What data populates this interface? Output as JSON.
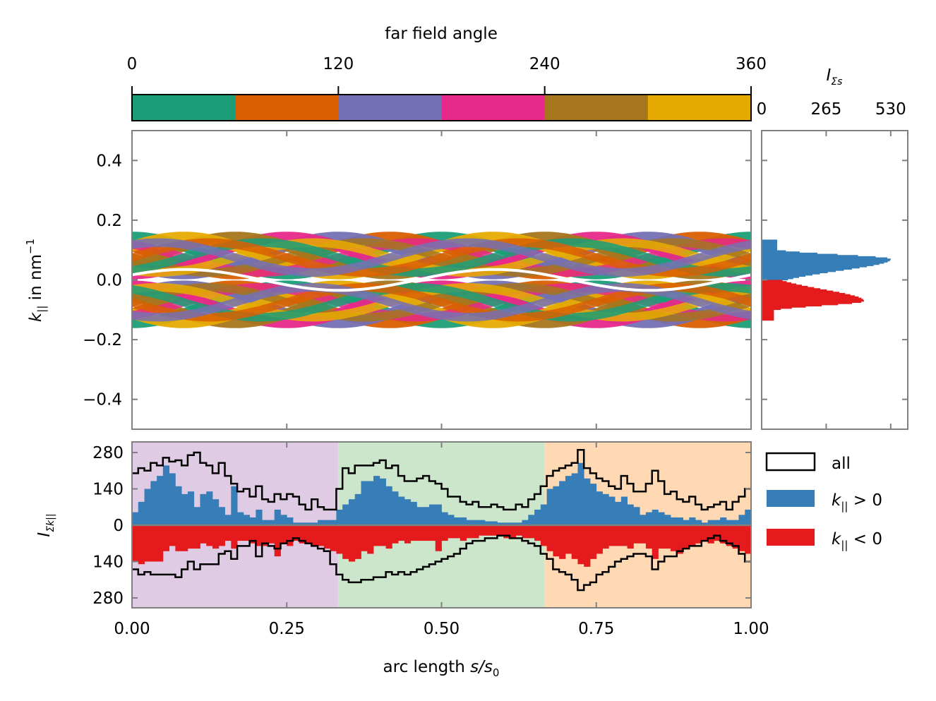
{
  "chart_data": [
    {
      "id": "colorbar",
      "type": "colorbar",
      "title": "far field angle",
      "range": [
        0,
        360
      ],
      "ticks": [
        "0",
        "120",
        "240",
        "360"
      ],
      "tick_values": [
        0,
        120,
        240,
        360
      ],
      "segments": [
        {
          "from": 0,
          "to": 60,
          "color": "#1b9e77"
        },
        {
          "from": 60,
          "to": 120,
          "color": "#d95f02"
        },
        {
          "from": 120,
          "to": 180,
          "color": "#7570b3"
        },
        {
          "from": 180,
          "to": 240,
          "color": "#e7298a"
        },
        {
          "from": 240,
          "to": 300,
          "color": "#a6761d"
        },
        {
          "from": 300,
          "to": 360,
          "color": "#e6ab02"
        }
      ]
    },
    {
      "id": "main",
      "type": "scatter",
      "ylabel_main": "k",
      "ylabel_sub": "||",
      "ylabel_rest": " in nm",
      "ylabel_sup": "−1",
      "xlim": [
        0,
        1
      ],
      "ylim": [
        -0.5,
        0.5
      ],
      "yticks": [
        "0.4",
        "0.2",
        "0.0",
        "−0.2",
        "−0.4"
      ],
      "ytick_values": [
        0.4,
        0.2,
        0.0,
        -0.2,
        -0.4
      ],
      "xtick_values": [
        0.25,
        0.5,
        0.75
      ],
      "band_amplitude": 0.13,
      "band_width": 0.018
    },
    {
      "id": "side",
      "type": "bar",
      "orientation": "horizontal",
      "xlabel_main": "I",
      "xlabel_sub": "Σs",
      "xlim": [
        0,
        600
      ],
      "xticks": [
        "0",
        "265",
        "530"
      ],
      "xtick_values": [
        0,
        265,
        530
      ],
      "ylim": [
        -0.5,
        0.5
      ],
      "series": [
        {
          "name": "k|| > 0",
          "color": "#377eb8",
          "peak_k": 0.07,
          "peak_value": 530,
          "k_range": [
            0,
            0.135
          ]
        },
        {
          "name": "k|| < 0",
          "color": "#e41a1c",
          "peak_k": -0.07,
          "peak_value": 420,
          "k_range": [
            -0.135,
            0
          ]
        }
      ]
    },
    {
      "id": "bottom",
      "type": "bar",
      "xlabel_text": "arc length ",
      "xlabel_var": "s/s",
      "xlabel_sub": "0",
      "ylabel_main": "I",
      "ylabel_sub": "Σk||",
      "xlim": [
        0,
        1
      ],
      "ylim": [
        -300,
        300
      ],
      "xticks": [
        "0.00",
        "0.25",
        "0.50",
        "0.75",
        "1.00"
      ],
      "xtick_values": [
        0,
        0.25,
        0.5,
        0.75,
        1.0
      ],
      "yticks": [
        "280",
        "140",
        "0",
        "140",
        "280"
      ],
      "ytick_values": [
        280,
        140,
        0,
        -140,
        -280
      ],
      "background_regions": [
        {
          "from": 0.0,
          "to": 0.3333,
          "color": "#e0cbe4"
        },
        {
          "from": 0.3333,
          "to": 0.6667,
          "color": "#cce6cb"
        },
        {
          "from": 0.6667,
          "to": 1.0,
          "color": "#fed9b3"
        }
      ],
      "x_bins": [
        0.005,
        0.015,
        0.025,
        0.035,
        0.045,
        0.055,
        0.065,
        0.075,
        0.085,
        0.095,
        0.105,
        0.115,
        0.125,
        0.135,
        0.145,
        0.155,
        0.165,
        0.175,
        0.185,
        0.195,
        0.205,
        0.215,
        0.225,
        0.235,
        0.245,
        0.255,
        0.265,
        0.275,
        0.285,
        0.295,
        0.305,
        0.315,
        0.325,
        0.335,
        0.345,
        0.355,
        0.365,
        0.375,
        0.385,
        0.395,
        0.405,
        0.415,
        0.425,
        0.435,
        0.445,
        0.455,
        0.465,
        0.475,
        0.485,
        0.495,
        0.505,
        0.515,
        0.525,
        0.535,
        0.545,
        0.555,
        0.565,
        0.575,
        0.585,
        0.595,
        0.605,
        0.615,
        0.625,
        0.635,
        0.645,
        0.655,
        0.665,
        0.675,
        0.685,
        0.695,
        0.705,
        0.715,
        0.725,
        0.735,
        0.745,
        0.755,
        0.765,
        0.775,
        0.785,
        0.795,
        0.805,
        0.815,
        0.825,
        0.835,
        0.845,
        0.855,
        0.865,
        0.875,
        0.885,
        0.895,
        0.905,
        0.915,
        0.925,
        0.935,
        0.945,
        0.955,
        0.965,
        0.975,
        0.985,
        0.995
      ],
      "series": [
        {
          "name": "all",
          "style": "step",
          "color": "#000000",
          "sign": 1,
          "values": [
            200,
            220,
            210,
            240,
            230,
            260,
            245,
            250,
            230,
            270,
            280,
            240,
            230,
            200,
            240,
            190,
            160,
            130,
            140,
            110,
            150,
            100,
            90,
            120,
            100,
            120,
            110,
            80,
            60,
            100,
            70,
            60,
            60,
            140,
            220,
            200,
            230,
            230,
            230,
            240,
            250,
            220,
            230,
            190,
            170,
            170,
            180,
            190,
            170,
            160,
            140,
            110,
            110,
            90,
            80,
            90,
            70,
            70,
            80,
            70,
            60,
            60,
            80,
            70,
            100,
            120,
            150,
            190,
            210,
            220,
            230,
            240,
            290,
            220,
            200,
            180,
            170,
            150,
            140,
            190,
            160,
            130,
            130,
            160,
            210,
            170,
            120,
            130,
            100,
            90,
            110,
            80,
            60,
            70,
            80,
            90,
            60,
            90,
            110,
            140
          ]
        },
        {
          "name": "k|| > 0",
          "style": "bar",
          "color": "#377eb8",
          "sign": 1,
          "values": [
            50,
            90,
            140,
            170,
            190,
            230,
            200,
            150,
            120,
            130,
            70,
            120,
            130,
            100,
            70,
            40,
            150,
            50,
            40,
            30,
            60,
            20,
            20,
            60,
            40,
            30,
            10,
            10,
            10,
            10,
            20,
            20,
            20,
            60,
            80,
            100,
            120,
            170,
            170,
            190,
            180,
            150,
            130,
            110,
            100,
            90,
            70,
            70,
            80,
            80,
            50,
            40,
            30,
            30,
            20,
            20,
            20,
            15,
            15,
            10,
            10,
            10,
            10,
            20,
            40,
            60,
            80,
            140,
            150,
            170,
            190,
            200,
            240,
            180,
            160,
            130,
            120,
            110,
            90,
            110,
            80,
            70,
            40,
            50,
            60,
            50,
            40,
            30,
            30,
            20,
            30,
            20,
            10,
            20,
            20,
            30,
            20,
            20,
            40,
            60
          ]
        },
        {
          "name": "k|| < 0",
          "style": "bar",
          "color": "#e41a1c",
          "sign": -1,
          "values": [
            140,
            150,
            140,
            140,
            140,
            100,
            80,
            100,
            100,
            90,
            90,
            70,
            80,
            90,
            80,
            60,
            90,
            60,
            60,
            70,
            80,
            80,
            70,
            120,
            70,
            80,
            60,
            70,
            70,
            80,
            80,
            90,
            100,
            110,
            130,
            140,
            130,
            100,
            110,
            80,
            80,
            90,
            70,
            60,
            70,
            60,
            60,
            60,
            60,
            100,
            60,
            50,
            50,
            60,
            50,
            50,
            40,
            40,
            40,
            40,
            50,
            50,
            40,
            50,
            50,
            60,
            80,
            100,
            120,
            130,
            110,
            130,
            150,
            160,
            130,
            110,
            90,
            80,
            80,
            80,
            90,
            70,
            70,
            90,
            130,
            90,
            90,
            100,
            110,
            90,
            80,
            70,
            60,
            70,
            60,
            70,
            80,
            90,
            100,
            110
          ]
        },
        {
          "name": "all",
          "style": "step",
          "color": "#000000",
          "sign": -1,
          "values": [
            170,
            190,
            180,
            190,
            190,
            190,
            190,
            200,
            170,
            140,
            170,
            150,
            150,
            150,
            110,
            100,
            130,
            80,
            80,
            60,
            120,
            70,
            80,
            90,
            70,
            60,
            50,
            60,
            70,
            80,
            90,
            100,
            150,
            190,
            210,
            220,
            220,
            210,
            210,
            200,
            200,
            180,
            190,
            180,
            190,
            180,
            170,
            160,
            150,
            140,
            130,
            120,
            110,
            90,
            70,
            60,
            60,
            50,
            50,
            40,
            40,
            50,
            50,
            60,
            70,
            80,
            110,
            130,
            170,
            180,
            190,
            210,
            250,
            230,
            220,
            190,
            180,
            160,
            140,
            130,
            120,
            110,
            110,
            120,
            170,
            140,
            120,
            120,
            100,
            90,
            80,
            80,
            60,
            50,
            40,
            60,
            70,
            80,
            110,
            140
          ]
        }
      ]
    }
  ],
  "legend": [
    {
      "label_text": "all",
      "kind": "outline",
      "color": "#000000"
    },
    {
      "label_main": "k",
      "label_sub": "||",
      "label_rest": " > 0",
      "kind": "fill",
      "color": "#377eb8"
    },
    {
      "label_main": "k",
      "label_sub": "||",
      "label_rest": " < 0",
      "kind": "fill",
      "color": "#e41a1c"
    }
  ]
}
